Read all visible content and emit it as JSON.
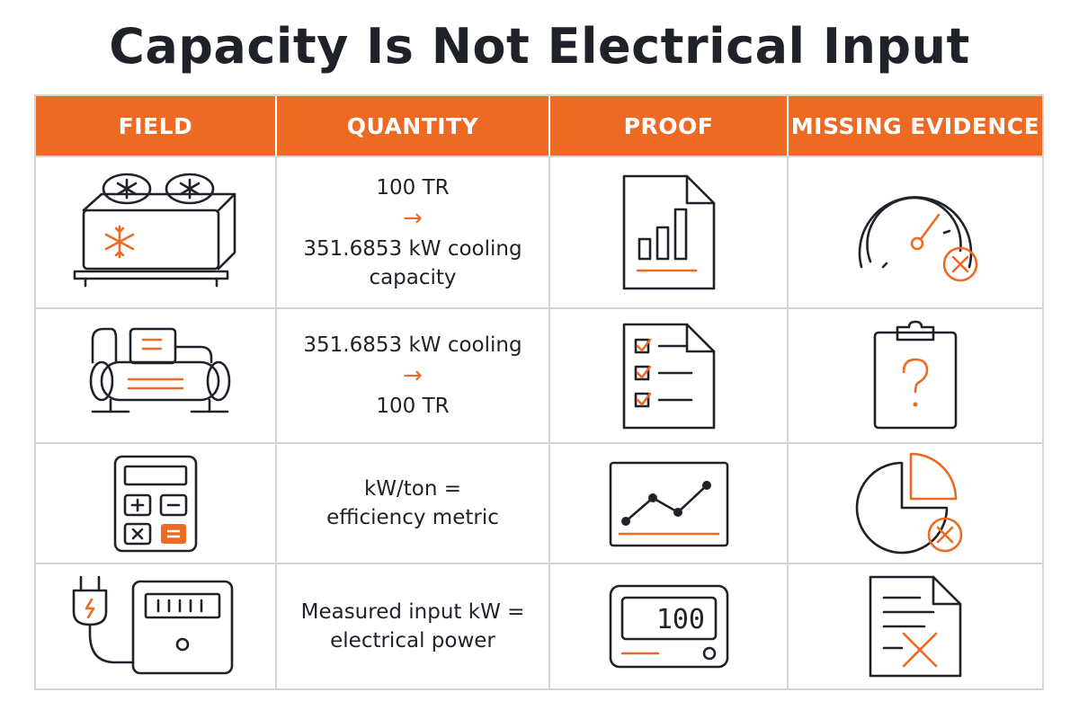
{
  "title": "Capacity Is Not Electrical Input",
  "headers": [
    "FIELD",
    "QUANTITY",
    "PROOF",
    "MISSING EVIDENCE"
  ],
  "rows": [
    {
      "field_icon": "air-cooled-chiller-icon",
      "quantity": [
        "100 TR",
        "→",
        "351.6853 kW cooling",
        "capacity"
      ],
      "proof_icon": "bar-chart-document-icon",
      "missing_icon": "gauge-with-x-icon"
    },
    {
      "field_icon": "water-cooled-chiller-icon",
      "quantity": [
        "351.6853 kW cooling",
        "→",
        "100 TR"
      ],
      "proof_icon": "checklist-document-icon",
      "missing_icon": "clipboard-question-icon"
    },
    {
      "field_icon": "calculator-icon",
      "quantity": [
        "kW/ton =",
        "efficiency metric"
      ],
      "proof_icon": "line-chart-icon",
      "missing_icon": "pie-chart-with-x-icon"
    },
    {
      "field_icon": "power-plug-meter-icon",
      "quantity": [
        "Measured input kW =",
        "electrical power"
      ],
      "proof_icon": "digital-meter-icon",
      "missing_icon": "document-with-x-icon",
      "meter_reading": "100"
    }
  ],
  "colors": {
    "accent": "#ec6a24",
    "ink": "#1f2229",
    "grid": "#d4d4d4"
  }
}
